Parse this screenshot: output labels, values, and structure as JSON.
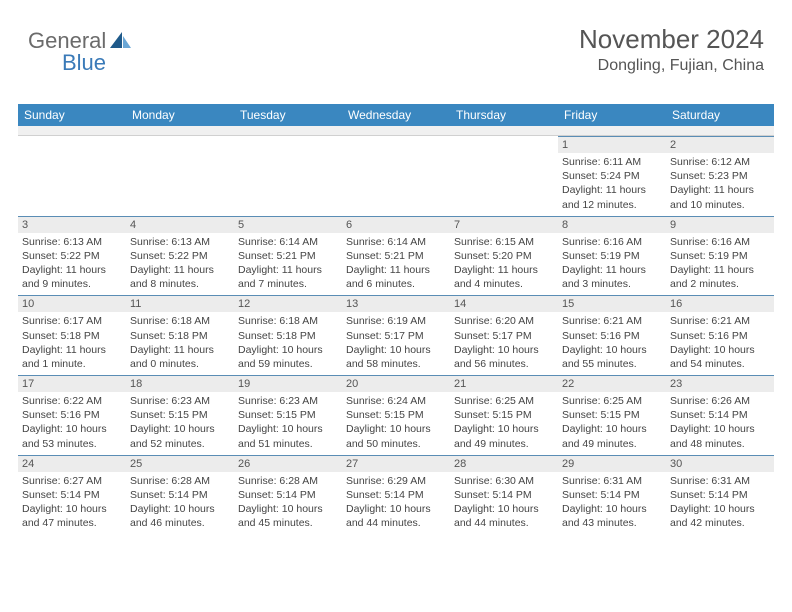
{
  "logo": {
    "general": "General",
    "blue": "Blue"
  },
  "header": {
    "month_title": "November 2024",
    "location": "Dongling, Fujian, China"
  },
  "colors": {
    "header_bg": "#3a87c0",
    "header_text": "#ffffff",
    "day_number_bg": "#ececec",
    "cell_border_top": "#5a8db5",
    "logo_general": "#6b6b6b",
    "logo_blue": "#3a7ab8"
  },
  "weekdays": [
    "Sunday",
    "Monday",
    "Tuesday",
    "Wednesday",
    "Thursday",
    "Friday",
    "Saturday"
  ],
  "weeks": [
    [
      {
        "day": "",
        "sunrise": "",
        "sunset": "",
        "daylight1": "",
        "daylight2": ""
      },
      {
        "day": "",
        "sunrise": "",
        "sunset": "",
        "daylight1": "",
        "daylight2": ""
      },
      {
        "day": "",
        "sunrise": "",
        "sunset": "",
        "daylight1": "",
        "daylight2": ""
      },
      {
        "day": "",
        "sunrise": "",
        "sunset": "",
        "daylight1": "",
        "daylight2": ""
      },
      {
        "day": "",
        "sunrise": "",
        "sunset": "",
        "daylight1": "",
        "daylight2": ""
      },
      {
        "day": "1",
        "sunrise": "Sunrise: 6:11 AM",
        "sunset": "Sunset: 5:24 PM",
        "daylight1": "Daylight: 11 hours",
        "daylight2": "and 12 minutes."
      },
      {
        "day": "2",
        "sunrise": "Sunrise: 6:12 AM",
        "sunset": "Sunset: 5:23 PM",
        "daylight1": "Daylight: 11 hours",
        "daylight2": "and 10 minutes."
      }
    ],
    [
      {
        "day": "3",
        "sunrise": "Sunrise: 6:13 AM",
        "sunset": "Sunset: 5:22 PM",
        "daylight1": "Daylight: 11 hours",
        "daylight2": "and 9 minutes."
      },
      {
        "day": "4",
        "sunrise": "Sunrise: 6:13 AM",
        "sunset": "Sunset: 5:22 PM",
        "daylight1": "Daylight: 11 hours",
        "daylight2": "and 8 minutes."
      },
      {
        "day": "5",
        "sunrise": "Sunrise: 6:14 AM",
        "sunset": "Sunset: 5:21 PM",
        "daylight1": "Daylight: 11 hours",
        "daylight2": "and 7 minutes."
      },
      {
        "day": "6",
        "sunrise": "Sunrise: 6:14 AM",
        "sunset": "Sunset: 5:21 PM",
        "daylight1": "Daylight: 11 hours",
        "daylight2": "and 6 minutes."
      },
      {
        "day": "7",
        "sunrise": "Sunrise: 6:15 AM",
        "sunset": "Sunset: 5:20 PM",
        "daylight1": "Daylight: 11 hours",
        "daylight2": "and 4 minutes."
      },
      {
        "day": "8",
        "sunrise": "Sunrise: 6:16 AM",
        "sunset": "Sunset: 5:19 PM",
        "daylight1": "Daylight: 11 hours",
        "daylight2": "and 3 minutes."
      },
      {
        "day": "9",
        "sunrise": "Sunrise: 6:16 AM",
        "sunset": "Sunset: 5:19 PM",
        "daylight1": "Daylight: 11 hours",
        "daylight2": "and 2 minutes."
      }
    ],
    [
      {
        "day": "10",
        "sunrise": "Sunrise: 6:17 AM",
        "sunset": "Sunset: 5:18 PM",
        "daylight1": "Daylight: 11 hours",
        "daylight2": "and 1 minute."
      },
      {
        "day": "11",
        "sunrise": "Sunrise: 6:18 AM",
        "sunset": "Sunset: 5:18 PM",
        "daylight1": "Daylight: 11 hours",
        "daylight2": "and 0 minutes."
      },
      {
        "day": "12",
        "sunrise": "Sunrise: 6:18 AM",
        "sunset": "Sunset: 5:18 PM",
        "daylight1": "Daylight: 10 hours",
        "daylight2": "and 59 minutes."
      },
      {
        "day": "13",
        "sunrise": "Sunrise: 6:19 AM",
        "sunset": "Sunset: 5:17 PM",
        "daylight1": "Daylight: 10 hours",
        "daylight2": "and 58 minutes."
      },
      {
        "day": "14",
        "sunrise": "Sunrise: 6:20 AM",
        "sunset": "Sunset: 5:17 PM",
        "daylight1": "Daylight: 10 hours",
        "daylight2": "and 56 minutes."
      },
      {
        "day": "15",
        "sunrise": "Sunrise: 6:21 AM",
        "sunset": "Sunset: 5:16 PM",
        "daylight1": "Daylight: 10 hours",
        "daylight2": "and 55 minutes."
      },
      {
        "day": "16",
        "sunrise": "Sunrise: 6:21 AM",
        "sunset": "Sunset: 5:16 PM",
        "daylight1": "Daylight: 10 hours",
        "daylight2": "and 54 minutes."
      }
    ],
    [
      {
        "day": "17",
        "sunrise": "Sunrise: 6:22 AM",
        "sunset": "Sunset: 5:16 PM",
        "daylight1": "Daylight: 10 hours",
        "daylight2": "and 53 minutes."
      },
      {
        "day": "18",
        "sunrise": "Sunrise: 6:23 AM",
        "sunset": "Sunset: 5:15 PM",
        "daylight1": "Daylight: 10 hours",
        "daylight2": "and 52 minutes."
      },
      {
        "day": "19",
        "sunrise": "Sunrise: 6:23 AM",
        "sunset": "Sunset: 5:15 PM",
        "daylight1": "Daylight: 10 hours",
        "daylight2": "and 51 minutes."
      },
      {
        "day": "20",
        "sunrise": "Sunrise: 6:24 AM",
        "sunset": "Sunset: 5:15 PM",
        "daylight1": "Daylight: 10 hours",
        "daylight2": "and 50 minutes."
      },
      {
        "day": "21",
        "sunrise": "Sunrise: 6:25 AM",
        "sunset": "Sunset: 5:15 PM",
        "daylight1": "Daylight: 10 hours",
        "daylight2": "and 49 minutes."
      },
      {
        "day": "22",
        "sunrise": "Sunrise: 6:25 AM",
        "sunset": "Sunset: 5:15 PM",
        "daylight1": "Daylight: 10 hours",
        "daylight2": "and 49 minutes."
      },
      {
        "day": "23",
        "sunrise": "Sunrise: 6:26 AM",
        "sunset": "Sunset: 5:14 PM",
        "daylight1": "Daylight: 10 hours",
        "daylight2": "and 48 minutes."
      }
    ],
    [
      {
        "day": "24",
        "sunrise": "Sunrise: 6:27 AM",
        "sunset": "Sunset: 5:14 PM",
        "daylight1": "Daylight: 10 hours",
        "daylight2": "and 47 minutes."
      },
      {
        "day": "25",
        "sunrise": "Sunrise: 6:28 AM",
        "sunset": "Sunset: 5:14 PM",
        "daylight1": "Daylight: 10 hours",
        "daylight2": "and 46 minutes."
      },
      {
        "day": "26",
        "sunrise": "Sunrise: 6:28 AM",
        "sunset": "Sunset: 5:14 PM",
        "daylight1": "Daylight: 10 hours",
        "daylight2": "and 45 minutes."
      },
      {
        "day": "27",
        "sunrise": "Sunrise: 6:29 AM",
        "sunset": "Sunset: 5:14 PM",
        "daylight1": "Daylight: 10 hours",
        "daylight2": "and 44 minutes."
      },
      {
        "day": "28",
        "sunrise": "Sunrise: 6:30 AM",
        "sunset": "Sunset: 5:14 PM",
        "daylight1": "Daylight: 10 hours",
        "daylight2": "and 44 minutes."
      },
      {
        "day": "29",
        "sunrise": "Sunrise: 6:31 AM",
        "sunset": "Sunset: 5:14 PM",
        "daylight1": "Daylight: 10 hours",
        "daylight2": "and 43 minutes."
      },
      {
        "day": "30",
        "sunrise": "Sunrise: 6:31 AM",
        "sunset": "Sunset: 5:14 PM",
        "daylight1": "Daylight: 10 hours",
        "daylight2": "and 42 minutes."
      }
    ]
  ]
}
